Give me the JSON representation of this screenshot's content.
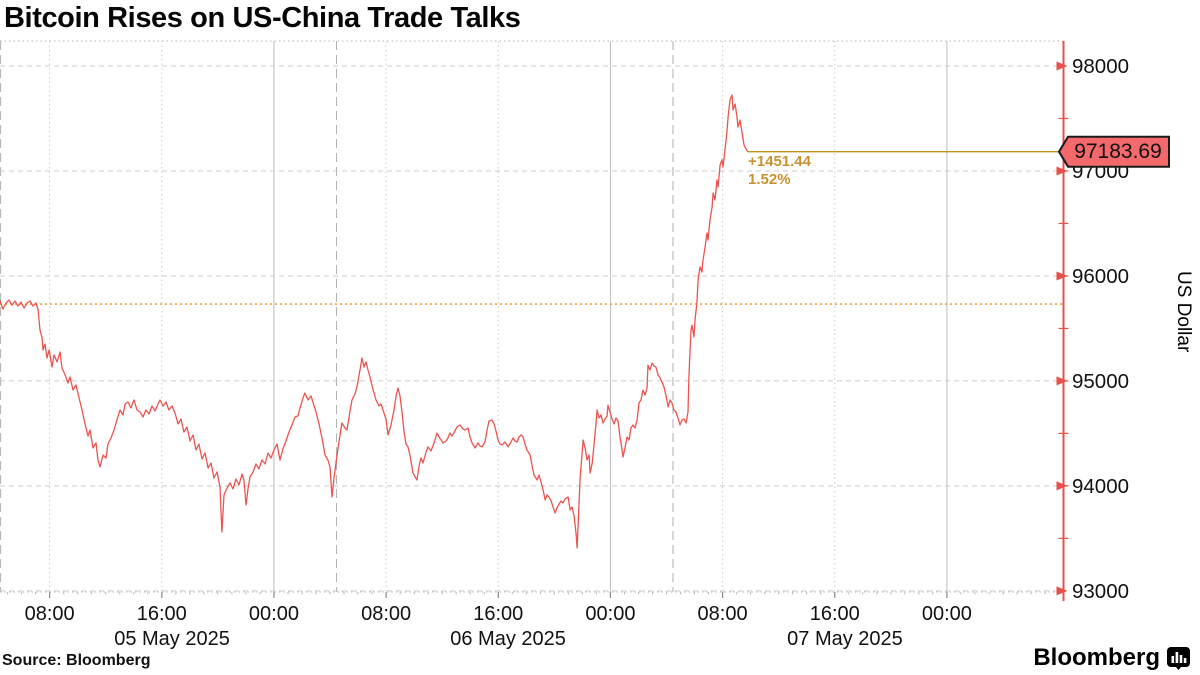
{
  "header": {
    "title": "Bitcoin Rises on US-China Trade Talks"
  },
  "footer": {
    "source_label": "Source: Bloomberg",
    "brand": "Bloomberg",
    "brand_icon": "bloomberg-terminal-icon"
  },
  "colors": {
    "price_line": "#EE534E",
    "axis_red": "#E8504B",
    "flag_fill": "#F4696B",
    "flag_border": "#1a1a1a",
    "prev_close_line": "#EDA33C",
    "last_price_line": "#C59119",
    "annotation": "#C9922E",
    "grid": "#cccccc",
    "grid_midnight": "#bdbdbd",
    "grid_session": "#b0b0b0",
    "tick_text": "#111111"
  },
  "chart_data": {
    "type": "line",
    "title": "Bitcoin Rises on US-China Trade Talks",
    "series_name": "Bitcoin / US Dollar",
    "last_price": 97183.69,
    "last_price_label": "97183.69",
    "change_label": "+1451.44",
    "change_pct_label": "1.52%",
    "previous_close": 95732.25,
    "ylim": [
      92950,
      98240
    ],
    "y_axis": {
      "title": "US Dollar",
      "ticks": [
        98000,
        97000,
        96000,
        95000,
        94000,
        93000
      ],
      "minor_step": 500
    },
    "x_axis": {
      "unit": "hours since 05 May 2025 00:00",
      "range_hours": [
        4.46,
        80.3
      ],
      "tick_labels": [
        {
          "hour": 8,
          "label": "08:00",
          "midnight": false
        },
        {
          "hour": 16,
          "label": "16:00",
          "midnight": false
        },
        {
          "hour": 24,
          "label": "00:00",
          "midnight": true
        },
        {
          "hour": 32,
          "label": "08:00",
          "midnight": false
        },
        {
          "hour": 40,
          "label": "16:00",
          "midnight": false
        },
        {
          "hour": 48,
          "label": "00:00",
          "midnight": true
        },
        {
          "hour": 56,
          "label": "08:00",
          "midnight": false
        },
        {
          "hour": 64,
          "label": "16:00",
          "midnight": false
        },
        {
          "hour": 72,
          "label": "00:00",
          "midnight": true
        }
      ],
      "date_labels": [
        {
          "label": "05 May 2025",
          "center_hour": 16.73
        },
        {
          "label": "06 May 2025",
          "center_hour": 40.7
        },
        {
          "label": "07 May 2025",
          "center_hour": 64.73
        }
      ],
      "session_start_hours": [
        4.46,
        28.46,
        52.46
      ]
    },
    "points_hours_price": [
      [
        4.46,
        95761
      ],
      [
        4.67,
        95685
      ],
      [
        4.89,
        95742
      ],
      [
        5.1,
        95771
      ],
      [
        5.32,
        95723
      ],
      [
        5.53,
        95761
      ],
      [
        5.74,
        95713
      ],
      [
        5.96,
        95752
      ],
      [
        6.17,
        95694
      ],
      [
        6.39,
        95742
      ],
      [
        6.6,
        95761
      ],
      [
        6.81,
        95713
      ],
      [
        7.03,
        95742
      ],
      [
        7.17,
        95685
      ],
      [
        7.31,
        95485
      ],
      [
        7.46,
        95409
      ],
      [
        7.53,
        95294
      ],
      [
        7.67,
        95351
      ],
      [
        7.81,
        95218
      ],
      [
        7.96,
        95294
      ],
      [
        8.17,
        95132
      ],
      [
        8.31,
        95247
      ],
      [
        8.53,
        95180
      ],
      [
        8.74,
        95275
      ],
      [
        8.88,
        95123
      ],
      [
        9.1,
        95056
      ],
      [
        9.31,
        94980
      ],
      [
        9.45,
        95037
      ],
      [
        9.67,
        94913
      ],
      [
        9.88,
        94961
      ],
      [
        10.1,
        94837
      ],
      [
        10.31,
        94723
      ],
      [
        10.52,
        94590
      ],
      [
        10.74,
        94475
      ],
      [
        10.88,
        94532
      ],
      [
        11.09,
        94361
      ],
      [
        11.31,
        94409
      ],
      [
        11.45,
        94247
      ],
      [
        11.59,
        94180
      ],
      [
        11.81,
        94294
      ],
      [
        12.02,
        94266
      ],
      [
        12.16,
        94399
      ],
      [
        12.38,
        94456
      ],
      [
        12.59,
        94532
      ],
      [
        12.8,
        94628
      ],
      [
        13.02,
        94723
      ],
      [
        13.23,
        94675
      ],
      [
        13.38,
        94780
      ],
      [
        13.59,
        94799
      ],
      [
        13.8,
        94742
      ],
      [
        14.02,
        94818
      ],
      [
        14.23,
        94723
      ],
      [
        14.45,
        94704
      ],
      [
        14.66,
        94656
      ],
      [
        14.87,
        94723
      ],
      [
        15.09,
        94685
      ],
      [
        15.3,
        94761
      ],
      [
        15.52,
        94713
      ],
      [
        15.73,
        94780
      ],
      [
        15.87,
        94818
      ],
      [
        16.09,
        94761
      ],
      [
        16.3,
        94799
      ],
      [
        16.51,
        94723
      ],
      [
        16.73,
        94761
      ],
      [
        16.94,
        94694
      ],
      [
        17.16,
        94590
      ],
      [
        17.37,
        94637
      ],
      [
        17.58,
        94513
      ],
      [
        17.8,
        94561
      ],
      [
        18.01,
        94428
      ],
      [
        18.23,
        94485
      ],
      [
        18.44,
        94342
      ],
      [
        18.65,
        94399
      ],
      [
        18.87,
        94256
      ],
      [
        19.08,
        94313
      ],
      [
        19.3,
        94170
      ],
      [
        19.51,
        94218
      ],
      [
        19.72,
        94075
      ],
      [
        19.94,
        94132
      ],
      [
        20.15,
        93990
      ],
      [
        20.29,
        93561
      ],
      [
        20.44,
        93913
      ],
      [
        20.65,
        93980
      ],
      [
        20.87,
        94028
      ],
      [
        21.08,
        93971
      ],
      [
        21.29,
        94066
      ],
      [
        21.51,
        94009
      ],
      [
        21.72,
        94113
      ],
      [
        21.86,
        94056
      ],
      [
        22.01,
        93818
      ],
      [
        22.15,
        93971
      ],
      [
        22.29,
        94085
      ],
      [
        22.51,
        94132
      ],
      [
        22.72,
        94209
      ],
      [
        22.93,
        94161
      ],
      [
        23.15,
        94247
      ],
      [
        23.36,
        94209
      ],
      [
        23.58,
        94313
      ],
      [
        23.79,
        94266
      ],
      [
        24.0,
        94342
      ],
      [
        24.22,
        94399
      ],
      [
        24.43,
        94247
      ],
      [
        24.64,
        94351
      ],
      [
        24.86,
        94428
      ],
      [
        25.07,
        94513
      ],
      [
        25.29,
        94580
      ],
      [
        25.5,
        94656
      ],
      [
        25.71,
        94666
      ],
      [
        25.86,
        94742
      ],
      [
        26.07,
        94837
      ],
      [
        26.21,
        94885
      ],
      [
        26.43,
        94818
      ],
      [
        26.64,
        94856
      ],
      [
        26.78,
        94799
      ],
      [
        27.0,
        94704
      ],
      [
        27.21,
        94590
      ],
      [
        27.43,
        94456
      ],
      [
        27.64,
        94294
      ],
      [
        27.85,
        94247
      ],
      [
        28.0,
        94180
      ],
      [
        28.14,
        93894
      ],
      [
        28.28,
        94075
      ],
      [
        28.5,
        94294
      ],
      [
        28.71,
        94485
      ],
      [
        28.85,
        94599
      ],
      [
        29.07,
        94551
      ],
      [
        29.21,
        94532
      ],
      [
        29.42,
        94704
      ],
      [
        29.57,
        94818
      ],
      [
        29.78,
        94875
      ],
      [
        29.92,
        94942
      ],
      [
        30.14,
        95104
      ],
      [
        30.28,
        95218
      ],
      [
        30.42,
        95132
      ],
      [
        30.57,
        95180
      ],
      [
        30.71,
        95104
      ],
      [
        30.85,
        95037
      ],
      [
        31.07,
        94913
      ],
      [
        31.28,
        94818
      ],
      [
        31.49,
        94761
      ],
      [
        31.64,
        94780
      ],
      [
        31.78,
        94723
      ],
      [
        31.99,
        94637
      ],
      [
        32.14,
        94485
      ],
      [
        32.35,
        94580
      ],
      [
        32.56,
        94723
      ],
      [
        32.71,
        94856
      ],
      [
        32.85,
        94932
      ],
      [
        32.99,
        94856
      ],
      [
        33.13,
        94704
      ],
      [
        33.28,
        94513
      ],
      [
        33.42,
        94399
      ],
      [
        33.56,
        94371
      ],
      [
        33.7,
        94294
      ],
      [
        33.92,
        94123
      ],
      [
        34.06,
        94085
      ],
      [
        34.2,
        94056
      ],
      [
        34.35,
        94189
      ],
      [
        34.49,
        94266
      ],
      [
        34.63,
        94218
      ],
      [
        34.85,
        94323
      ],
      [
        34.99,
        94371
      ],
      [
        35.2,
        94332
      ],
      [
        35.42,
        94409
      ],
      [
        35.63,
        94504
      ],
      [
        35.77,
        94466
      ],
      [
        35.92,
        94437
      ],
      [
        36.06,
        94409
      ],
      [
        36.27,
        94428
      ],
      [
        36.41,
        94456
      ],
      [
        36.56,
        94504
      ],
      [
        36.7,
        94475
      ],
      [
        36.91,
        94523
      ],
      [
        37.06,
        94561
      ],
      [
        37.27,
        94580
      ],
      [
        37.48,
        94542
      ],
      [
        37.63,
        94532
      ],
      [
        37.84,
        94551
      ],
      [
        37.98,
        94466
      ],
      [
        38.13,
        94409
      ],
      [
        38.34,
        94361
      ],
      [
        38.55,
        94409
      ],
      [
        38.7,
        94380
      ],
      [
        38.84,
        94371
      ],
      [
        39.05,
        94418
      ],
      [
        39.2,
        94532
      ],
      [
        39.34,
        94618
      ],
      [
        39.55,
        94628
      ],
      [
        39.7,
        94590
      ],
      [
        39.84,
        94523
      ],
      [
        39.98,
        94437
      ],
      [
        40.13,
        94399
      ],
      [
        40.27,
        94390
      ],
      [
        40.48,
        94418
      ],
      [
        40.7,
        94371
      ],
      [
        40.91,
        94418
      ],
      [
        41.05,
        94456
      ],
      [
        41.2,
        94428
      ],
      [
        41.34,
        94418
      ],
      [
        41.48,
        94466
      ],
      [
        41.62,
        94485
      ],
      [
        41.77,
        94466
      ],
      [
        41.91,
        94399
      ],
      [
        42.05,
        94342
      ],
      [
        42.27,
        94294
      ],
      [
        42.41,
        94189
      ],
      [
        42.55,
        94104
      ],
      [
        42.77,
        94056
      ],
      [
        42.91,
        94104
      ],
      [
        43.05,
        94037
      ],
      [
        43.2,
        93961
      ],
      [
        43.34,
        93866
      ],
      [
        43.48,
        93913
      ],
      [
        43.62,
        93894
      ],
      [
        43.77,
        93856
      ],
      [
        43.91,
        93799
      ],
      [
        44.05,
        93742
      ],
      [
        44.19,
        93790
      ],
      [
        44.34,
        93828
      ],
      [
        44.48,
        93856
      ],
      [
        44.62,
        93837
      ],
      [
        44.76,
        93875
      ],
      [
        44.98,
        93894
      ],
      [
        45.12,
        93771
      ],
      [
        45.26,
        93799
      ],
      [
        45.41,
        93713
      ],
      [
        45.55,
        93542
      ],
      [
        45.62,
        93409
      ],
      [
        45.69,
        93599
      ],
      [
        45.83,
        94056
      ],
      [
        45.98,
        94313
      ],
      [
        46.05,
        94437
      ],
      [
        46.19,
        94361
      ],
      [
        46.33,
        94247
      ],
      [
        46.48,
        94294
      ],
      [
        46.55,
        94123
      ],
      [
        46.69,
        94209
      ],
      [
        46.83,
        94390
      ],
      [
        46.97,
        94590
      ],
      [
        47.05,
        94723
      ],
      [
        47.19,
        94647
      ],
      [
        47.33,
        94675
      ],
      [
        47.47,
        94599
      ],
      [
        47.62,
        94637
      ],
      [
        47.76,
        94666
      ],
      [
        47.83,
        94770
      ],
      [
        47.97,
        94704
      ],
      [
        48.11,
        94637
      ],
      [
        48.26,
        94590
      ],
      [
        48.4,
        94647
      ],
      [
        48.54,
        94618
      ],
      [
        48.68,
        94466
      ],
      [
        48.83,
        94342
      ],
      [
        48.9,
        94275
      ],
      [
        49.04,
        94361
      ],
      [
        49.18,
        94466
      ],
      [
        49.33,
        94437
      ],
      [
        49.47,
        94551
      ],
      [
        49.61,
        94580
      ],
      [
        49.75,
        94551
      ],
      [
        49.9,
        94628
      ],
      [
        50.04,
        94790
      ],
      [
        50.18,
        94818
      ],
      [
        50.32,
        94913
      ],
      [
        50.47,
        94866
      ],
      [
        50.61,
        94932
      ],
      [
        50.68,
        95151
      ],
      [
        50.82,
        95104
      ],
      [
        50.97,
        95171
      ],
      [
        51.11,
        95142
      ],
      [
        51.25,
        95132
      ],
      [
        51.39,
        95056
      ],
      [
        51.54,
        95028
      ],
      [
        51.68,
        94990
      ],
      [
        51.82,
        94942
      ],
      [
        51.96,
        94866
      ],
      [
        52.11,
        94751
      ],
      [
        52.25,
        94818
      ],
      [
        52.39,
        94790
      ],
      [
        52.53,
        94723
      ],
      [
        52.68,
        94704
      ],
      [
        52.82,
        94647
      ],
      [
        52.96,
        94580
      ],
      [
        53.1,
        94628
      ],
      [
        53.25,
        94637
      ],
      [
        53.39,
        94599
      ],
      [
        53.53,
        94704
      ],
      [
        53.6,
        95037
      ],
      [
        53.68,
        95294
      ],
      [
        53.75,
        95485
      ],
      [
        53.82,
        95532
      ],
      [
        53.96,
        95418
      ],
      [
        54.03,
        95580
      ],
      [
        54.17,
        95742
      ],
      [
        54.25,
        95961
      ],
      [
        54.39,
        96085
      ],
      [
        54.53,
        96037
      ],
      [
        54.6,
        96152
      ],
      [
        54.75,
        96276
      ],
      [
        54.89,
        96409
      ],
      [
        54.96,
        96342
      ],
      [
        55.1,
        96533
      ],
      [
        55.25,
        96657
      ],
      [
        55.32,
        96790
      ],
      [
        55.46,
        96723
      ],
      [
        55.6,
        96914
      ],
      [
        55.67,
        96847
      ],
      [
        55.82,
        97057
      ],
      [
        55.96,
        97105
      ],
      [
        56.03,
        97038
      ],
      [
        56.17,
        97200
      ],
      [
        56.32,
        97390
      ],
      [
        56.39,
        97514
      ],
      [
        56.53,
        97676
      ],
      [
        56.67,
        97724
      ],
      [
        56.74,
        97581
      ],
      [
        56.89,
        97638
      ],
      [
        57.03,
        97514
      ],
      [
        57.1,
        97419
      ],
      [
        57.24,
        97486
      ],
      [
        57.39,
        97362
      ],
      [
        57.53,
        97247
      ],
      [
        57.67,
        97209
      ],
      [
        57.81,
        97183.69
      ]
    ]
  }
}
